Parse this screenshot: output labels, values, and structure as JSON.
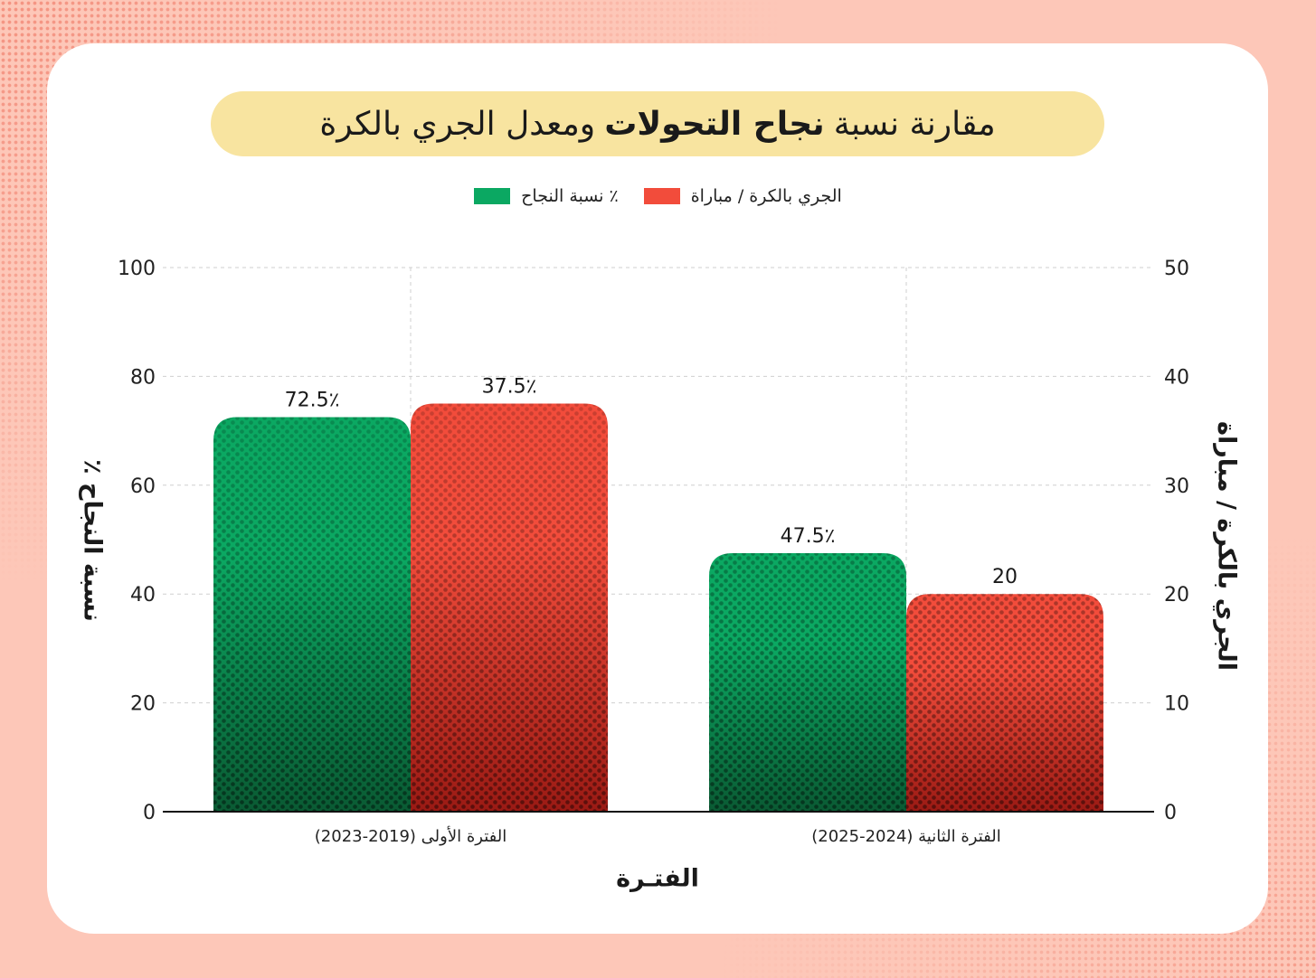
{
  "title": {
    "before": "مقارنة نسبة",
    "bold": "نجاح التحولات",
    "after": "ومعدل الجري بالكرة"
  },
  "colors": {
    "green": "#0BA862",
    "red": "#F24C3B",
    "pill": "#F8E4A0"
  },
  "chart_data": {
    "type": "bar",
    "categories": [
      "الفترة الأولى (2019-2023)",
      "الفترة الثانية (2024-2025)"
    ],
    "series": [
      {
        "name": "٪ نسبة النجاح",
        "values": [
          72.5,
          47.5
        ],
        "axis": "left",
        "labels": [
          "72.5٪",
          "47.5٪"
        ],
        "color": "#0BA862"
      },
      {
        "name": "الجري بالكرة / مباراة",
        "values": [
          37.5,
          20
        ],
        "axis": "right",
        "labels": [
          "37.5٪",
          "20"
        ],
        "color": "#F24C3B"
      }
    ],
    "y_left": {
      "label": "٪ نسبة النجاح",
      "lim": [
        0,
        100
      ],
      "ticks": [
        "0",
        "20",
        "40",
        "60",
        "80",
        "100"
      ]
    },
    "y_right": {
      "label": "الجري بالكرة / مباراة",
      "lim": [
        0,
        50
      ],
      "ticks": [
        "0",
        "10",
        "20",
        "30",
        "40",
        "50"
      ]
    },
    "xlabel": "الفتـرة",
    "grid": true,
    "legend": "top-center"
  }
}
